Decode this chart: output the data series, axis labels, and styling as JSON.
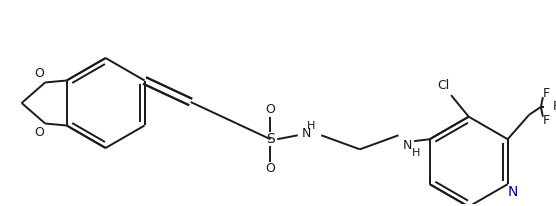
{
  "bg_color": "#ffffff",
  "line_color": "#1a1a1a",
  "blue_color": "#00008b",
  "line_width": 1.4,
  "figsize": [
    5.56,
    2.06
  ],
  "dpi": 100,
  "xlim": [
    0,
    556
  ],
  "ylim": [
    0,
    206
  ]
}
